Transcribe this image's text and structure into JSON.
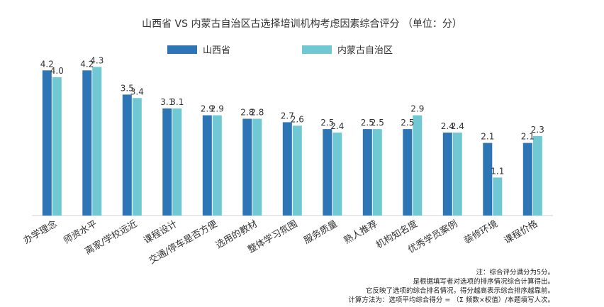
{
  "chart_data": {
    "type": "bar",
    "title": "山西省 VS 内蒙古自治区古选择培训机构考虑因素综合评分 （单位：分）",
    "categories": [
      "办学理念",
      "师资水平",
      "离家/学校远近",
      "课程设计",
      "交通/停车是否方便",
      "选用的教材",
      "整体学习氛围",
      "服务质量",
      "熟人推荐",
      "机构知名度",
      "优秀学员案例",
      "装修环境",
      "课程价格"
    ],
    "series": [
      {
        "name": "山西省",
        "color": "#2E75B6",
        "values": [
          4.2,
          4.2,
          3.5,
          3.1,
          2.9,
          2.8,
          2.7,
          2.5,
          2.5,
          2.5,
          2.4,
          2.1,
          2.1
        ]
      },
      {
        "name": "内蒙古自治区",
        "color": "#70C9D2",
        "values": [
          4.0,
          4.3,
          3.4,
          3.1,
          2.9,
          2.8,
          2.6,
          2.4,
          2.5,
          2.9,
          2.4,
          1.1,
          2.3
        ]
      }
    ],
    "ylim": [
      0,
      4.8
    ],
    "grid": false,
    "legend": "top-center"
  },
  "notes": [
    "注：综合评分满分为5分。",
    "是根据填写者对选项的排序情况综合计算得出。",
    "它反映了选项的综合排名情况，得分越高表示综合排序越靠前。",
    "计算方法为：选项平均综合得分 = （Σ 频数×权值）/本题填写人次。"
  ]
}
